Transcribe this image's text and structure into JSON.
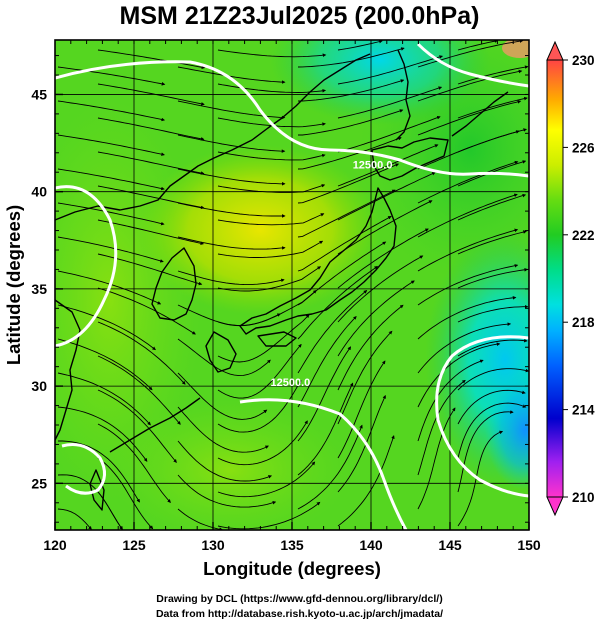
{
  "title": "MSM 21Z23Jul2025 (200.0hPa)",
  "map": {
    "x_axis": {
      "label": "Longitude (degrees)",
      "range": [
        120,
        150
      ],
      "ticks": [
        {
          "value": 120,
          "label": "120"
        },
        {
          "value": 125,
          "label": "125"
        },
        {
          "value": 130,
          "label": "130"
        },
        {
          "value": 135,
          "label": "135"
        },
        {
          "value": 140,
          "label": "140"
        },
        {
          "value": 145,
          "label": "145"
        },
        {
          "value": 150,
          "label": "150"
        }
      ]
    },
    "y_axis": {
      "label": "Latitude  (degrees)",
      "range": [
        22.6,
        47.8
      ],
      "ticks": [
        {
          "value": 25,
          "label": "25"
        },
        {
          "value": 30,
          "label": "30"
        },
        {
          "value": 35,
          "label": "35"
        },
        {
          "value": 40,
          "label": "40"
        },
        {
          "value": 45,
          "label": "45"
        }
      ]
    },
    "contour_labels": [
      {
        "text": "12500.0",
        "lon": 134.9,
        "lat": 30.0
      },
      {
        "text": "12500.0",
        "lon": 140.1,
        "lat": 41.2
      }
    ]
  },
  "colorbar": {
    "range": [
      210,
      230
    ],
    "ticks": [
      {
        "value": 210,
        "label": "210"
      },
      {
        "value": 214,
        "label": "214"
      },
      {
        "value": 218,
        "label": "218"
      },
      {
        "value": 222,
        "label": "222"
      },
      {
        "value": 226,
        "label": "226"
      },
      {
        "value": 230,
        "label": "230"
      }
    ],
    "colors": [
      "#ff33cc",
      "#a020f0",
      "#0000cd",
      "#0060ff",
      "#00b0ff",
      "#00e0e0",
      "#00dd88",
      "#22cc22",
      "#66dd11",
      "#ccee00",
      "#ffff00",
      "#ffaa00",
      "#ff5500",
      "#ff3333"
    ]
  },
  "credits": {
    "line1": "Drawing by DCL (https://www.gfd-dennou.org/library/dcl/)",
    "line2": "Data from http://database.rish.kyoto-u.ac.jp/arch/jmadata/"
  }
}
